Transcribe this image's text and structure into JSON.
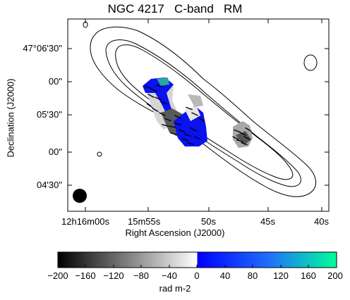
{
  "title": "NGC 4217   C-band   RM",
  "axes": {
    "xlabel": "Right Ascension (J2000)",
    "ylabel": "Declination (J2000)",
    "x_ticks": [
      "12h16m00s",
      "15m55s",
      "50s",
      "45s",
      "40s"
    ],
    "y_ticks": [
      "47°06'30\"",
      "00\"",
      "05'30\"",
      "00\"",
      "04'30\""
    ]
  },
  "colorbar": {
    "label": "rad m-2",
    "ticks": [
      "−200",
      "−160",
      "−120",
      "−80",
      "−40",
      "0",
      "40",
      "80",
      "120",
      "160",
      "200"
    ],
    "range": [
      -200,
      200
    ],
    "colors": {
      "min": "#000000",
      "zero_neg": "#ffffff",
      "zero_pos": "#0000ff",
      "max": "#00ff99"
    }
  }
}
